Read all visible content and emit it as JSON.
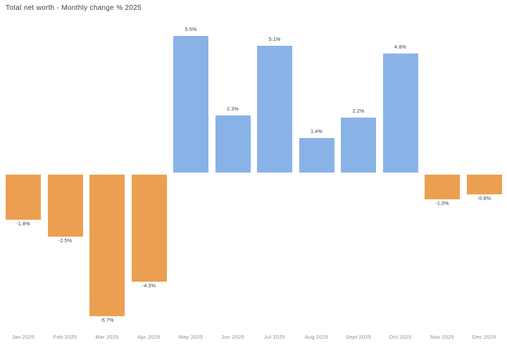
{
  "title": "Total net worth - Monthly change % 2025",
  "chart_data": {
    "type": "bar",
    "title": "Total net worth - Monthly change % 2025",
    "xlabel": "",
    "ylabel": "",
    "categories": [
      "Jan 2025",
      "Feb 2025",
      "Mar 2025",
      "Apr 2025",
      "May 2025",
      "Jun 2025",
      "Jul 2025",
      "Aug 2025",
      "Sept 2025",
      "Oct 2025",
      "Nov 2025",
      "Dec 2025"
    ],
    "values": [
      -1.8,
      -2.5,
      -5.7,
      -4.3,
      5.5,
      2.3,
      5.1,
      1.4,
      2.2,
      4.8,
      -1.0,
      -0.8
    ],
    "data_labels": [
      "-1.8%",
      "-2.5%",
      "-5.7%",
      "-4.3%",
      "5.5%",
      "2.3%",
      "5.1%",
      "1.4%",
      "2.2%",
      "4.8%",
      "-1.0%",
      "-0.8%"
    ],
    "ylim": [
      -6.2,
      6.2
    ],
    "grid": false,
    "legend_position": "none",
    "positive_color": "#89b3e7",
    "negative_color": "#ec9f50",
    "label_color": "#3b3e48",
    "axis_label_color": "#8a8f99",
    "background_color": "#ffffff"
  }
}
